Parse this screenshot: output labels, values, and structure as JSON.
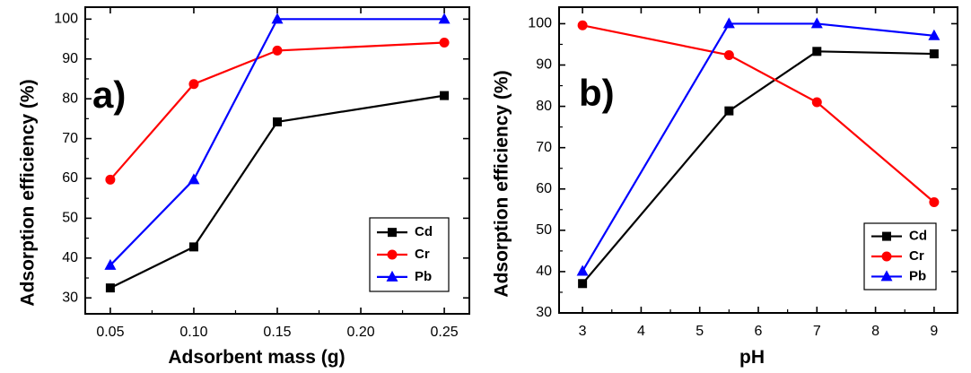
{
  "colors": {
    "Cd": "#000000",
    "Cr": "#ff0000",
    "Pb": "#0000ff"
  },
  "chart_data": [
    {
      "type": "line",
      "panel_label": "a)",
      "xlabel": "Adsorbent mass (g)",
      "ylabel": "Adsorption efficiency (%)",
      "xlim": [
        0.035,
        0.265
      ],
      "ylim": [
        26,
        103
      ],
      "xticks": [
        0.05,
        0.1,
        0.15,
        0.2,
        0.25
      ],
      "xtick_labels": [
        "0.05",
        "0.10",
        "0.15",
        "0.20",
        "0.25"
      ],
      "yticks": [
        30,
        40,
        50,
        60,
        70,
        80,
        90,
        100
      ],
      "ytick_labels": [
        "30",
        "40",
        "50",
        "60",
        "70",
        "80",
        "90",
        "100"
      ],
      "legend_position": "bottom-right",
      "series": [
        {
          "name": "Cd",
          "marker": "square",
          "color": "#000000",
          "x": [
            0.05,
            0.1,
            0.15,
            0.25
          ],
          "y": [
            32.5,
            42.8,
            74.2,
            80.8
          ]
        },
        {
          "name": "Cr",
          "marker": "circle",
          "color": "#ff0000",
          "x": [
            0.05,
            0.1,
            0.15,
            0.25
          ],
          "y": [
            59.7,
            83.7,
            92.1,
            94.1
          ]
        },
        {
          "name": "Pb",
          "marker": "triangle",
          "color": "#0000ff",
          "x": [
            0.05,
            0.1,
            0.15,
            0.25
          ],
          "y": [
            38.2,
            59.7,
            100.0,
            100.0
          ]
        }
      ]
    },
    {
      "type": "line",
      "panel_label": "b)",
      "xlabel": "pH",
      "ylabel": "Adsorption efficiency (%)",
      "xlim": [
        2.6,
        9.4
      ],
      "ylim": [
        30,
        104
      ],
      "xticks": [
        3,
        4,
        5,
        6,
        7,
        8,
        9
      ],
      "xtick_labels": [
        "3",
        "4",
        "5",
        "6",
        "7",
        "8",
        "9"
      ],
      "yticks": [
        30,
        40,
        50,
        60,
        70,
        80,
        90,
        100
      ],
      "ytick_labels": [
        "30",
        "40",
        "50",
        "60",
        "70",
        "80",
        "90",
        "100"
      ],
      "legend_position": "bottom-right",
      "series": [
        {
          "name": "Cd",
          "marker": "square",
          "color": "#000000",
          "x": [
            3,
            5.5,
            7,
            9
          ],
          "y": [
            37.1,
            78.9,
            93.3,
            92.7
          ]
        },
        {
          "name": "Cr",
          "marker": "circle",
          "color": "#ff0000",
          "x": [
            3,
            5.5,
            7,
            9
          ],
          "y": [
            99.6,
            92.4,
            81.0,
            56.8
          ]
        },
        {
          "name": "Pb",
          "marker": "triangle",
          "color": "#0000ff",
          "x": [
            3,
            5.5,
            7,
            9
          ],
          "y": [
            40.1,
            100.0,
            100.0,
            97.1
          ]
        }
      ]
    }
  ]
}
